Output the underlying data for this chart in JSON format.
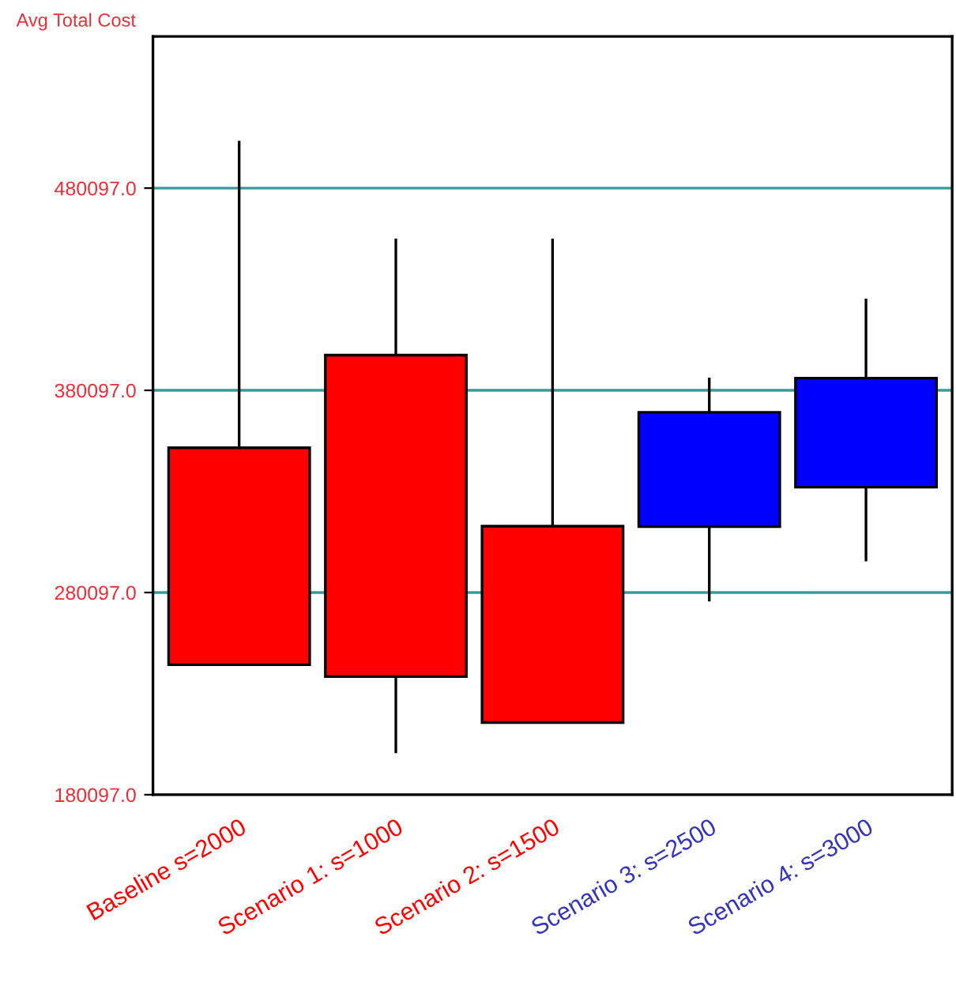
{
  "chart_data": {
    "type": "candlestick",
    "ylabel": "Avg Total Cost",
    "categories": [
      "Baseline s=2000",
      "Scenario 1: s=1000",
      "Scenario 2: s=1500",
      "Scenario 3: s=2500",
      "Scenario 4: s=3000"
    ],
    "ohlc": [
      [
        351700,
        503500,
        244400,
        244400
      ],
      [
        397500,
        455100,
        200700,
        238500
      ],
      [
        312900,
        455100,
        215800,
        215800
      ],
      [
        312700,
        386400,
        275700,
        369200
      ],
      [
        332200,
        425400,
        295500,
        386100
      ]
    ],
    "colors": [
      "#ff0000",
      "#ff0000",
      "#ff0000",
      "#0000ff",
      "#0000ff"
    ],
    "ylim": [
      180097,
      555097
    ],
    "yticks": [
      {
        "value": 180097,
        "label": "180097.0"
      },
      {
        "value": 280097,
        "label": "280097.0"
      },
      {
        "value": 380097,
        "label": "380097.0"
      },
      {
        "value": 480097,
        "label": "480097.0"
      }
    ],
    "grid": "y"
  }
}
